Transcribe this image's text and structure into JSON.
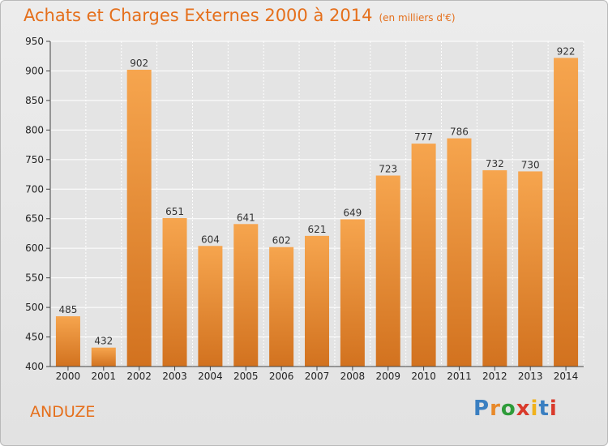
{
  "header": {
    "title": "Achats et Charges Externes 2000 à 2014",
    "unit": "(en milliers d'€)"
  },
  "footer": {
    "commune": "ANDUZE",
    "brand": "Proxiti",
    "brand_colors": [
      "#3a7fc1",
      "#e8892a",
      "#2e9c3a",
      "#d93a2b",
      "#f0b21c",
      "#3a7fc1",
      "#d93a2b"
    ]
  },
  "colors": {
    "accent": "#e56f1b",
    "bar_top": "#f6a54e",
    "bar_bottom": "#d2721f",
    "grid": "#ffffff"
  },
  "chart_data": {
    "type": "bar",
    "title": "Achats et Charges Externes 2000 à 2014",
    "subtitle": "(en milliers d'€)",
    "categories": [
      "2000",
      "2001",
      "2002",
      "2003",
      "2004",
      "2005",
      "2006",
      "2007",
      "2008",
      "2009",
      "2010",
      "2011",
      "2012",
      "2013",
      "2014"
    ],
    "values": [
      485,
      432,
      902,
      651,
      604,
      641,
      602,
      621,
      649,
      723,
      777,
      786,
      732,
      730,
      922
    ],
    "ylim": [
      400,
      950
    ],
    "yticks": [
      400,
      450,
      500,
      550,
      600,
      650,
      700,
      750,
      800,
      850,
      900,
      950
    ],
    "grid": true,
    "xlabel": "",
    "ylabel": ""
  }
}
